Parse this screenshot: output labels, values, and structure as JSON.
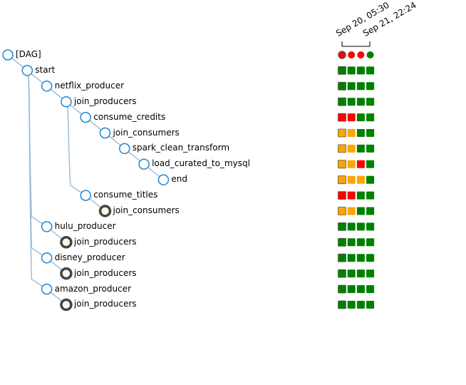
{
  "header": {
    "dates": [
      "Sep 20, 05:30",
      "Sep 21, 22:24"
    ]
  },
  "colors": {
    "success": "#008000",
    "failed": "#ff0000",
    "upstream_failed": "#ffa500",
    "node_stroke": "#1a86d4",
    "edge": "#9dbfdb",
    "ring": "#444444",
    "ring_fill": "#f0fbe8"
  },
  "status_icons": [
    "circle",
    "square"
  ],
  "tree": [
    {
      "label": "[DAG]",
      "depth": 0,
      "kind": "dag",
      "parent": -1,
      "runs": [
        "failed",
        "failed",
        "failed",
        "success"
      ]
    },
    {
      "label": "start",
      "depth": 1,
      "kind": "task",
      "parent": 0,
      "runs": [
        "success",
        "success",
        "success",
        "success"
      ]
    },
    {
      "label": "netflix_producer",
      "depth": 2,
      "kind": "task",
      "parent": 1,
      "runs": [
        "success",
        "success",
        "success",
        "success"
      ]
    },
    {
      "label": "join_producers",
      "depth": 3,
      "kind": "task",
      "parent": 2,
      "runs": [
        "success",
        "success",
        "success",
        "success"
      ]
    },
    {
      "label": "consume_credits",
      "depth": 4,
      "kind": "task",
      "parent": 3,
      "runs": [
        "failed",
        "failed",
        "success",
        "success"
      ]
    },
    {
      "label": "join_consumers",
      "depth": 5,
      "kind": "task",
      "parent": 4,
      "runs": [
        "upstream_failed",
        "upstream_failed",
        "success",
        "success"
      ]
    },
    {
      "label": "spark_clean_transform",
      "depth": 6,
      "kind": "task",
      "parent": 5,
      "runs": [
        "upstream_failed",
        "upstream_failed",
        "success",
        "success"
      ]
    },
    {
      "label": "load_curated_to_mysql",
      "depth": 7,
      "kind": "task",
      "parent": 6,
      "runs": [
        "upstream_failed",
        "upstream_failed",
        "failed",
        "success"
      ]
    },
    {
      "label": "end",
      "depth": 8,
      "kind": "task",
      "parent": 7,
      "runs": [
        "upstream_failed",
        "upstream_failed",
        "upstream_failed",
        "success"
      ]
    },
    {
      "label": "consume_titles",
      "depth": 4,
      "kind": "task",
      "parent": 3,
      "runs": [
        "failed",
        "failed",
        "success",
        "success"
      ]
    },
    {
      "label": "join_consumers",
      "depth": 5,
      "kind": "ref",
      "parent": 9,
      "runs": [
        "upstream_failed",
        "upstream_failed",
        "success",
        "success"
      ]
    },
    {
      "label": "hulu_producer",
      "depth": 2,
      "kind": "task",
      "parent": 1,
      "runs": [
        "success",
        "success",
        "success",
        "success"
      ]
    },
    {
      "label": "join_producers",
      "depth": 3,
      "kind": "ref",
      "parent": 11,
      "runs": [
        "success",
        "success",
        "success",
        "success"
      ]
    },
    {
      "label": "disney_producer",
      "depth": 2,
      "kind": "task",
      "parent": 1,
      "runs": [
        "success",
        "success",
        "success",
        "success"
      ]
    },
    {
      "label": "join_producers",
      "depth": 3,
      "kind": "ref",
      "parent": 13,
      "runs": [
        "success",
        "success",
        "success",
        "success"
      ]
    },
    {
      "label": "amazon_producer",
      "depth": 2,
      "kind": "task",
      "parent": 1,
      "runs": [
        "success",
        "success",
        "success",
        "success"
      ]
    },
    {
      "label": "join_producers",
      "depth": 3,
      "kind": "ref",
      "parent": 15,
      "runs": [
        "success",
        "success",
        "success",
        "success"
      ]
    }
  ]
}
